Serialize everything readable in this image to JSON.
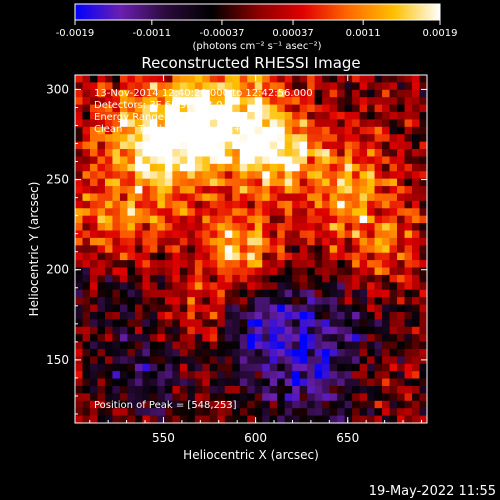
{
  "chart_data": {
    "type": "heatmap",
    "title": "Reconstructed RHESSI Image",
    "xlabel": "Heliocentric X (arcsec)",
    "ylabel": "Heliocentric Y (arcsec)",
    "xlim": [
      502,
      693
    ],
    "ylim": [
      115,
      308
    ],
    "x_ticks": [
      550,
      600,
      650
    ],
    "y_ticks": [
      150,
      200,
      250,
      300
    ],
    "colorbar": {
      "range": [
        -0.0019,
        0.0019
      ],
      "tick_values": [
        -0.0019,
        -0.0011,
        -0.00037,
        0.00037,
        0.0011,
        0.0019
      ],
      "tick_labels": [
        "-0.0019",
        "-0.0011",
        "-0.00037",
        "0.00037",
        "0.0011",
        "0.0019"
      ],
      "label": "(photons cm⁻² s⁻¹ asec⁻²)",
      "colors": [
        "#0000ff",
        "#6a1fb0",
        "#2a0a3a",
        "#000000",
        "#8a0000",
        "#e00000",
        "#ff6a00",
        "#ffc000",
        "#ffffff"
      ]
    },
    "annotations": [
      "13-Nov-2014 12:40:20.000 to 12:42:56.000",
      "Detectors: 3F 6F 9F, Att 0",
      "Energy Range: 12.0 - 25.0 keV",
      "Clean     Total counts: 2.47E+03"
    ],
    "peak_label": "Position of Peak = [548,253]",
    "peak": [
      548,
      253
    ],
    "bright_regions": [
      {
        "x": 548,
        "y": 270,
        "r": 32,
        "value": 0.0019
      },
      {
        "x": 585,
        "y": 285,
        "r": 30,
        "value": 0.0017
      },
      {
        "x": 612,
        "y": 265,
        "r": 22,
        "value": 0.0014
      },
      {
        "x": 590,
        "y": 212,
        "r": 20,
        "value": 0.0015
      },
      {
        "x": 650,
        "y": 245,
        "r": 28,
        "value": 0.0011
      },
      {
        "x": 668,
        "y": 212,
        "r": 20,
        "value": 0.0008
      },
      {
        "x": 522,
        "y": 225,
        "r": 22,
        "value": 0.0009
      },
      {
        "x": 570,
        "y": 175,
        "r": 16,
        "value": 0.0007
      },
      {
        "x": 660,
        "y": 140,
        "r": 16,
        "value": 0.0006
      }
    ],
    "dim_regions": [
      {
        "x": 630,
        "y": 150,
        "r": 38,
        "value": -0.0015
      },
      {
        "x": 540,
        "y": 140,
        "r": 28,
        "value": -0.0009
      },
      {
        "x": 520,
        "y": 185,
        "r": 22,
        "value": -0.0006
      },
      {
        "x": 600,
        "y": 172,
        "r": 20,
        "value": -0.0008
      }
    ]
  },
  "footer": {
    "timestamp": "19-May-2022 11:55"
  }
}
